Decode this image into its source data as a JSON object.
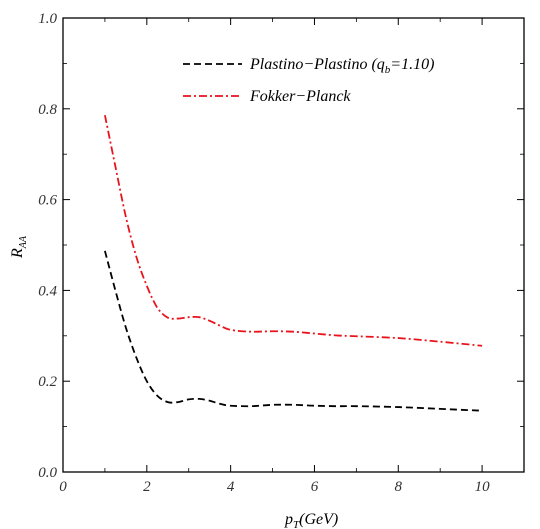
{
  "chart_data": {
    "type": "line",
    "xlabel": {
      "main": "p",
      "sub": "T",
      "rest": "(GeV)"
    },
    "ylabel": {
      "main": "R",
      "sub": "AA"
    },
    "xlim": [
      0,
      11
    ],
    "ylim": [
      0,
      1.0
    ],
    "xticks": [
      0,
      2,
      4,
      6,
      8,
      10
    ],
    "xtick_labels": [
      "0",
      "2",
      "4",
      "6",
      "8",
      "10"
    ],
    "yticks": [
      0.0,
      0.2,
      0.4,
      0.6,
      0.8,
      1.0
    ],
    "ytick_labels": [
      "0.0",
      "0.2",
      "0.4",
      "0.6",
      "0.8",
      "1.0"
    ],
    "grid": false,
    "legend_position": "top-right",
    "legend_entries": [
      {
        "pre": "Plastino−Plastino (q",
        "sub": "b",
        "post": "=1.10)"
      },
      {
        "pre": "Fokker−Planck",
        "sub": "",
        "post": ""
      }
    ],
    "series": [
      {
        "name": "Plastino−Plastino (qb=1.10)",
        "color": "#000000",
        "dash": "dashed",
        "x": [
          1.0,
          1.25,
          1.5,
          1.75,
          2.0,
          2.25,
          2.5,
          2.75,
          3.0,
          3.25,
          3.5,
          3.75,
          4.0,
          4.5,
          5.0,
          5.5,
          6.0,
          6.5,
          7.0,
          8.0,
          9.0,
          10.0
        ],
        "y": [
          0.487,
          0.4,
          0.318,
          0.252,
          0.2,
          0.168,
          0.154,
          0.154,
          0.16,
          0.161,
          0.157,
          0.15,
          0.146,
          0.145,
          0.148,
          0.148,
          0.146,
          0.145,
          0.145,
          0.143,
          0.139,
          0.135
        ]
      },
      {
        "name": "Fokker−Planck",
        "color": "#e8141c",
        "dash": "dashdot",
        "x": [
          1.0,
          1.25,
          1.5,
          1.75,
          2.0,
          2.25,
          2.5,
          2.75,
          3.0,
          3.25,
          3.5,
          3.75,
          4.0,
          4.5,
          5.0,
          5.5,
          6.0,
          6.5,
          7.0,
          8.0,
          9.0,
          10.0
        ],
        "y": [
          0.786,
          0.673,
          0.562,
          0.474,
          0.41,
          0.362,
          0.34,
          0.338,
          0.341,
          0.341,
          0.333,
          0.322,
          0.313,
          0.309,
          0.31,
          0.309,
          0.305,
          0.301,
          0.299,
          0.295,
          0.287,
          0.278
        ]
      }
    ]
  }
}
